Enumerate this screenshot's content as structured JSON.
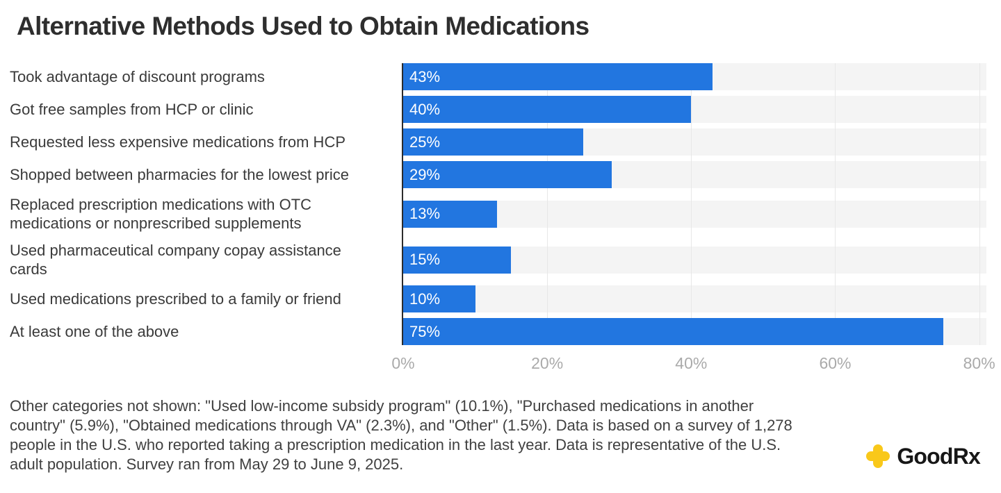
{
  "title": "Alternative Methods Used to Obtain Medications",
  "chart_data": {
    "type": "bar",
    "orientation": "horizontal",
    "title": "Alternative Methods Used to Obtain Medications",
    "xlim": [
      0,
      81
    ],
    "grid": true,
    "legend": false,
    "x_ticks": [
      {
        "value": 0,
        "label": "0%"
      },
      {
        "value": 20,
        "label": "20%"
      },
      {
        "value": 40,
        "label": "40%"
      },
      {
        "value": 60,
        "label": "60%"
      },
      {
        "value": 80,
        "label": "80%"
      }
    ],
    "items": [
      {
        "label": "Took advantage of discount programs",
        "value": 43,
        "display": "43%"
      },
      {
        "label": "Got free samples from HCP or clinic",
        "value": 40,
        "display": "40%"
      },
      {
        "label": "Requested less expensive medications from HCP",
        "value": 25,
        "display": "25%"
      },
      {
        "label": "Shopped between pharmacies for the lowest price",
        "value": 29,
        "display": "29%"
      },
      {
        "label": "Replaced prescription medications with OTC\nmedications or nonprescribed supplements",
        "value": 13,
        "display": "13%",
        "tall": true
      },
      {
        "label": "Used pharmaceutical company copay assistance\ncards",
        "value": 15,
        "display": "15%",
        "tall": true
      },
      {
        "label": "Used medications prescribed to a family or friend",
        "value": 10,
        "display": "10%"
      },
      {
        "label": "At least one of the above",
        "value": 75,
        "display": "75%"
      }
    ],
    "colors": {
      "bar": "#2276e0",
      "track": "#f4f4f4",
      "gridline": "#e7e7e7",
      "axis_line": "#2b2b2b",
      "value_text": "#ffffff"
    }
  },
  "footnote": "Other categories not shown: \"Used low-income subsidy program\" (10.1%), \"Purchased medications in another country\" (5.9%), \"Obtained medications through VA\" (2.3%), and \"Other\" (1.5%). Data is based on a survey of 1,278 people in the U.S. who reported taking a prescription medication in the last year. Data is representative of the U.S. adult population. Survey ran from May 29 to June 9, 2025.",
  "logo": {
    "brand": "GoodRx",
    "good": "Good",
    "rx": "Rx",
    "icon": "plus-icon",
    "icon_color": "#f9c81a",
    "text_color": "#171717"
  }
}
